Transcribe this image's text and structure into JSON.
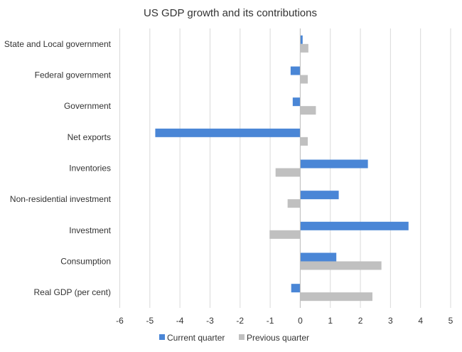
{
  "chart_data": {
    "type": "bar",
    "orientation": "horizontal",
    "title": "US GDP growth and its contributions",
    "xlabel": "",
    "ylabel": "",
    "categories": [
      "State and Local government",
      "Federal government",
      "Government",
      "Net exports",
      "Inventories",
      "Non-residential investment",
      "Investment",
      "Consumption",
      "Real GDP (per cent)"
    ],
    "series": [
      {
        "name": "Current quarter",
        "color": "#4a86d6",
        "values": [
          0.08,
          -0.32,
          -0.25,
          -4.82,
          2.25,
          1.28,
          3.6,
          1.2,
          -0.3
        ]
      },
      {
        "name": "Previous quarter",
        "color": "#c0c0c0",
        "values": [
          0.27,
          0.25,
          0.52,
          0.25,
          -0.82,
          -0.42,
          -1.02,
          2.7,
          2.4
        ]
      }
    ],
    "xlim": [
      -6,
      5
    ],
    "xticks": [
      "-6",
      "-5",
      "-4",
      "-3",
      "-2",
      "-1",
      "0",
      "1",
      "2",
      "3",
      "4",
      "5"
    ],
    "grid": true,
    "legend_position": "bottom"
  }
}
